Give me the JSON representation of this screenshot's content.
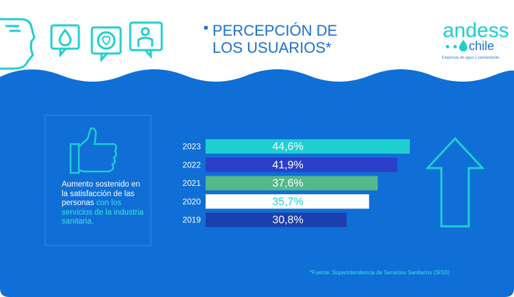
{
  "header": {
    "title_line1": "PERCEPCIÓN DE",
    "title_line2": "LOS USUARIOS*",
    "logo_name": "andess",
    "logo_country": "chile",
    "logo_tagline": "Empresas de agua y saneamiento"
  },
  "note": {
    "text": "Aumento sostenido en la satisfacción de las personas",
    "highlight": "con los servicios de la industria sanitaria."
  },
  "source": "*Fuente: Superintendencia de Servicios Sanitarios (SISS)",
  "chart_data": {
    "type": "hbar",
    "categories": [
      "2023",
      "2022",
      "2021",
      "2020",
      "2019"
    ],
    "values": [
      44.6,
      41.9,
      37.6,
      35.7,
      30.8
    ],
    "value_labels": [
      "44,6%",
      "41,9%",
      "37,6%",
      "35,7%",
      "30,8%"
    ],
    "colors": [
      "#1ecfd0",
      "#2b3fc9",
      "#55b88a",
      "#ffffff",
      "#1b3fae"
    ]
  }
}
